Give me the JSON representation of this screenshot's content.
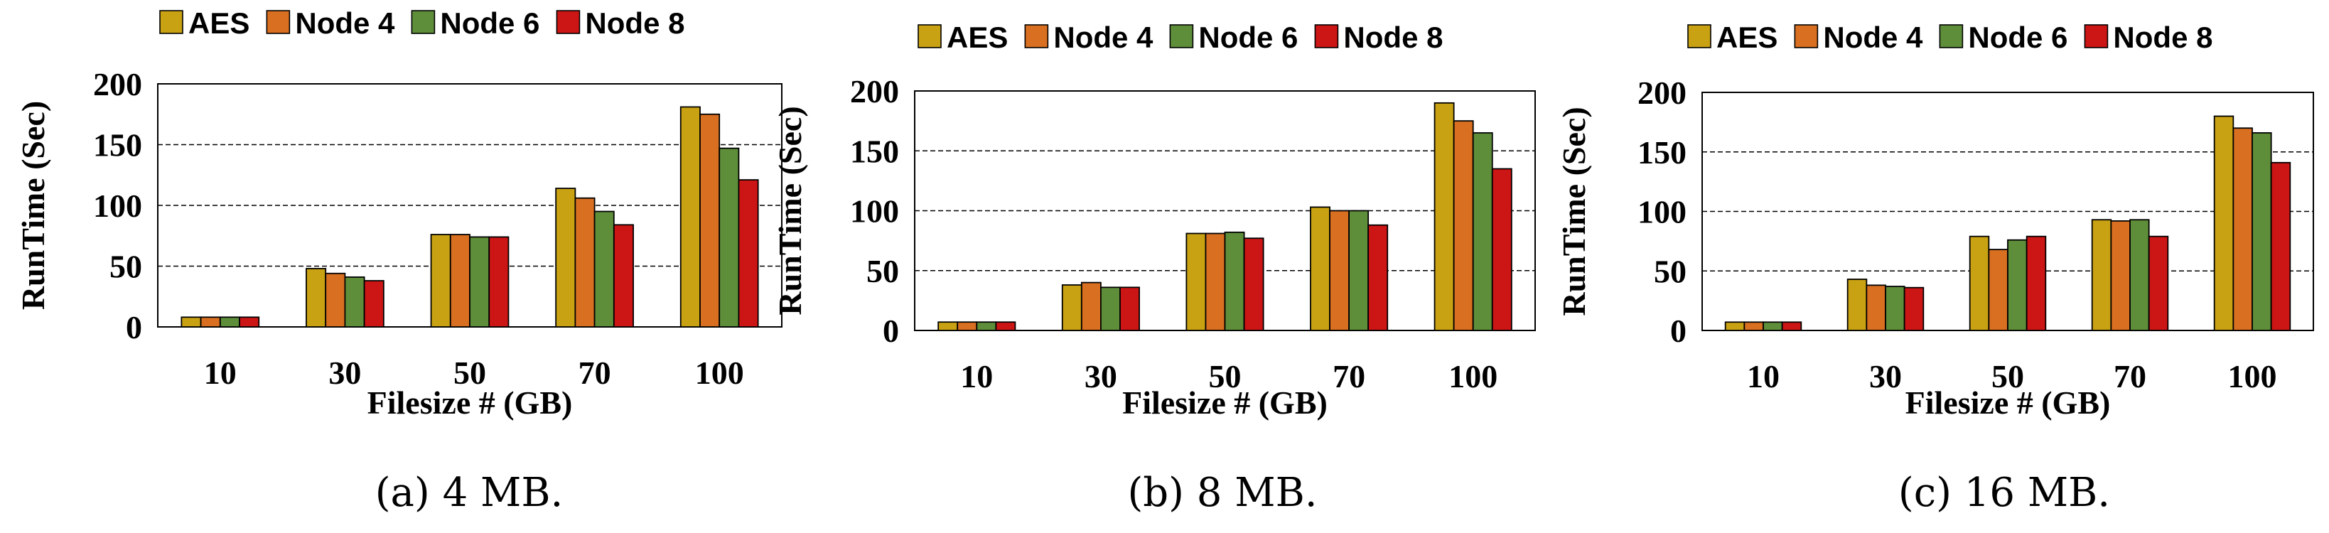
{
  "colors": {
    "AES": "#c9a213",
    "Node 4": "#d86f21",
    "Node 6": "#5e8e3a",
    "Node 8": "#cc1515"
  },
  "chart_data": [
    {
      "type": "bar",
      "categories": [
        "10",
        "30",
        "50",
        "70",
        "100"
      ],
      "series": [
        {
          "name": "AES",
          "values": [
            8,
            48,
            76,
            114,
            181
          ]
        },
        {
          "name": "Node 4",
          "values": [
            8,
            44,
            76,
            106,
            175
          ]
        },
        {
          "name": "Node 6",
          "values": [
            8,
            41,
            74,
            95,
            147
          ]
        },
        {
          "name": "Node 8",
          "values": [
            8,
            38,
            74,
            84,
            121
          ]
        }
      ],
      "xlabel": "Filesize # (GB)",
      "ylabel": "RunTime (Sec)",
      "ylim": [
        0,
        200
      ],
      "yticks": [
        "0",
        "50",
        "100",
        "150",
        "200"
      ],
      "grid": "horizontal-dashed",
      "legend": "top",
      "caption_label": "(a)",
      "caption_text": " 4 MB."
    },
    {
      "type": "bar",
      "categories": [
        "10",
        "30",
        "50",
        "70",
        "100"
      ],
      "series": [
        {
          "name": "AES",
          "values": [
            7,
            38,
            81,
            103,
            190
          ]
        },
        {
          "name": "Node 4",
          "values": [
            7,
            40,
            81,
            100,
            175
          ]
        },
        {
          "name": "Node 6",
          "values": [
            7,
            36,
            82,
            100,
            165
          ]
        },
        {
          "name": "Node 8",
          "values": [
            7,
            36,
            77,
            88,
            135
          ]
        }
      ],
      "xlabel": "Filesize # (GB)",
      "ylabel": "RunTime (Sec)",
      "ylim": [
        0,
        200
      ],
      "yticks": [
        "0",
        "50",
        "100",
        "150",
        "200"
      ],
      "grid": "horizontal-dashed",
      "legend": "top",
      "caption_label": "(b)",
      "caption_text": " 8 MB."
    },
    {
      "type": "bar",
      "categories": [
        "10",
        "30",
        "50",
        "70",
        "100"
      ],
      "series": [
        {
          "name": "AES",
          "values": [
            7,
            43,
            79,
            93,
            180
          ]
        },
        {
          "name": "Node 4",
          "values": [
            7,
            38,
            68,
            92,
            170
          ]
        },
        {
          "name": "Node 6",
          "values": [
            7,
            37,
            76,
            93,
            166
          ]
        },
        {
          "name": "Node 8",
          "values": [
            7,
            36,
            79,
            79,
            141
          ]
        }
      ],
      "xlabel": "Filesize # (GB)",
      "ylabel": "RunTime (Sec)",
      "ylim": [
        0,
        200
      ],
      "yticks": [
        "0",
        "50",
        "100",
        "150",
        "200"
      ],
      "grid": "horizontal-dashed",
      "legend": "top",
      "caption_label": "(c)",
      "caption_text": " 16 MB."
    }
  ]
}
